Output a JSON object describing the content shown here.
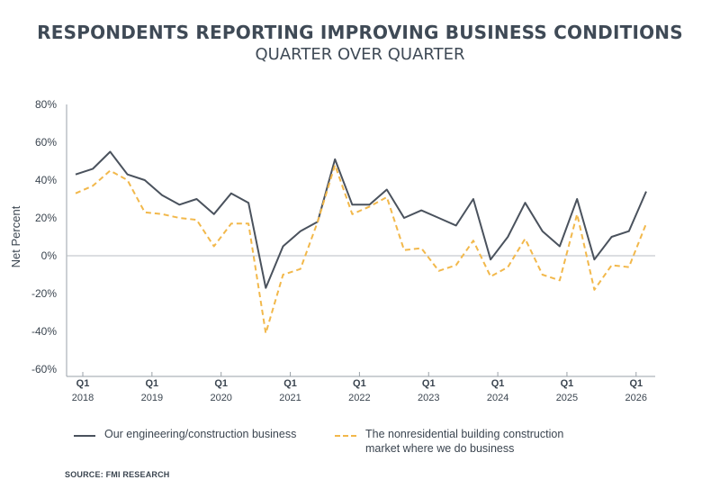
{
  "chart_data": {
    "type": "line",
    "title": "RESPONDENTS REPORTING IMPROVING BUSINESS CONDITIONS",
    "subtitle": "QUARTER OVER QUARTER",
    "ylabel": "Net Percent",
    "ylim": [
      -60,
      80
    ],
    "yticks": [
      80,
      60,
      40,
      20,
      0,
      -20,
      -40,
      -60
    ],
    "ytick_labels": [
      "80%",
      "60%",
      "40%",
      "20%",
      "0%",
      "-20%",
      "-40%",
      "-60%"
    ],
    "x_ticks": [
      {
        "index": 0,
        "quarter": "Q1",
        "year": "2018"
      },
      {
        "index": 4,
        "quarter": "Q1",
        "year": "2019"
      },
      {
        "index": 8,
        "quarter": "Q1",
        "year": "2020"
      },
      {
        "index": 12,
        "quarter": "Q1",
        "year": "2021"
      },
      {
        "index": 16,
        "quarter": "Q1",
        "year": "2022"
      },
      {
        "index": 20,
        "quarter": "Q1",
        "year": "2023"
      },
      {
        "index": 24,
        "quarter": "Q1",
        "year": "2024"
      },
      {
        "index": 28,
        "quarter": "Q1",
        "year": "2025"
      },
      {
        "index": 32,
        "quarter": "Q1",
        "year": "2026"
      }
    ],
    "grid": false,
    "zero_line": true,
    "series": [
      {
        "name": "Our engineering/construction business",
        "color": "#4a525d",
        "style": "solid",
        "values": [
          43,
          46,
          55,
          43,
          40,
          32,
          27,
          30,
          22,
          33,
          28,
          -17,
          5,
          13,
          18,
          51,
          27,
          27,
          35,
          20,
          24,
          20,
          16,
          30,
          -2,
          10,
          28,
          13,
          5,
          30,
          -2,
          10,
          13,
          34
        ]
      },
      {
        "name": "The nonresidential building construction market where we do business",
        "color": "#f2b84b",
        "style": "dashed",
        "values": [
          33,
          37,
          45,
          40,
          23,
          22,
          20,
          19,
          5,
          17,
          17,
          -41,
          -10,
          -7,
          18,
          48,
          22,
          26,
          31,
          3,
          4,
          -8,
          -5,
          8,
          -11,
          -6,
          9,
          -10,
          -13,
          22,
          -18,
          -5,
          -6,
          17
        ]
      }
    ],
    "legend_position": "bottom"
  },
  "source": "SOURCE: FMI RESEARCH"
}
